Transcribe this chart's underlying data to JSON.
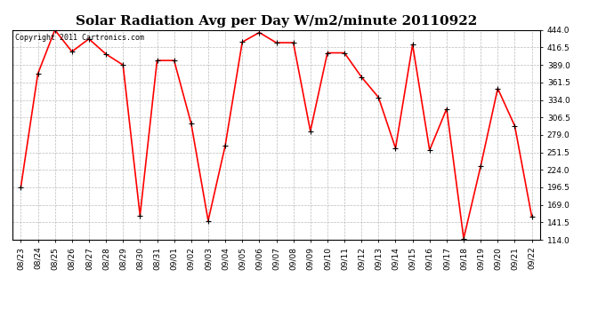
{
  "title": "Solar Radiation Avg per Day W/m2/minute 20110922",
  "copyright_text": "Copyright 2011 Cartronics.com",
  "dates": [
    "08/23",
    "08/24",
    "08/25",
    "08/26",
    "08/27",
    "08/28",
    "08/29",
    "08/30",
    "08/31",
    "09/01",
    "09/02",
    "09/03",
    "09/04",
    "09/05",
    "09/06",
    "09/07",
    "09/08",
    "09/09",
    "09/10",
    "09/11",
    "09/12",
    "09/13",
    "09/14",
    "09/15",
    "09/16",
    "09/17",
    "09/18",
    "09/19",
    "09/20",
    "09/21",
    "09/22"
  ],
  "values": [
    196.5,
    375.0,
    444.0,
    410.0,
    430.0,
    406.0,
    389.0,
    152.0,
    396.0,
    396.0,
    297.0,
    144.0,
    262.0,
    425.0,
    440.0,
    424.0,
    424.0,
    285.0,
    408.0,
    408.0,
    370.0,
    338.0,
    258.0,
    421.0,
    255.0,
    320.0,
    116.0,
    230.0,
    352.0,
    293.0,
    150.0
  ],
  "line_color": "#ff0000",
  "marker_color": "#000000",
  "bg_color": "#ffffff",
  "grid_color": "#bbbbbb",
  "ylim_min": 114.0,
  "ylim_max": 444.0,
  "yticks": [
    114.0,
    141.5,
    169.0,
    196.5,
    224.0,
    251.5,
    279.0,
    306.5,
    334.0,
    361.5,
    389.0,
    416.5,
    444.0
  ],
  "title_fontsize": 11,
  "tick_fontsize": 6.5,
  "copyright_fontsize": 6.0
}
